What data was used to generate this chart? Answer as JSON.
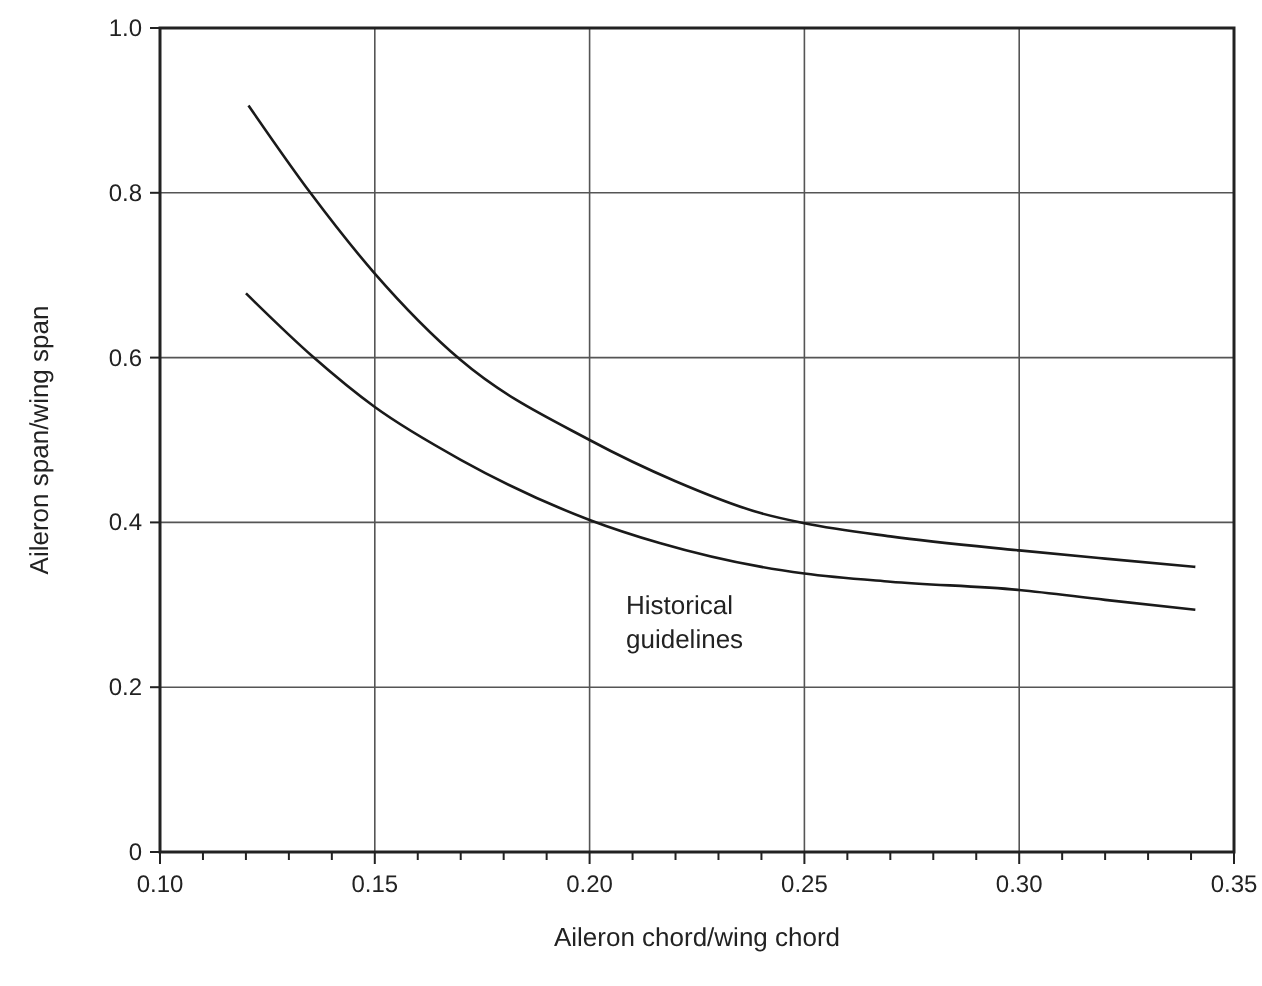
{
  "chart_data": {
    "type": "line",
    "xlabel": "Aileron chord/wing chord",
    "ylabel": "Aileron span/wing span",
    "series": [
      {
        "color": "#1a1a1a",
        "x": [
          0.1206,
          0.135,
          0.15,
          0.17,
          0.2,
          0.22,
          0.24,
          0.25,
          0.27,
          0.3,
          0.32,
          0.341
        ],
        "values": [
          0.906,
          0.8,
          0.702,
          0.597,
          0.5,
          0.45,
          0.411,
          0.399,
          0.383,
          0.366,
          0.356,
          0.346
        ]
      },
      {
        "color": "#1a1a1a",
        "x": [
          0.12,
          0.1356,
          0.15,
          0.17,
          0.2,
          0.2163,
          0.24,
          0.25,
          0.27,
          0.3,
          0.32,
          0.341
        ],
        "values": [
          0.678,
          0.601,
          0.54,
          0.476,
          0.403,
          0.375,
          0.346,
          0.338,
          0.328,
          0.318,
          0.306,
          0.294
        ]
      }
    ],
    "xlim": [
      0.1,
      0.35
    ],
    "ylim": [
      0,
      1
    ],
    "xticks": [
      "0.10",
      {
        "value": 0.11,
        "label": null
      },
      {
        "value": 0.12,
        "label": null
      },
      {
        "value": 0.13,
        "label": null
      },
      {
        "value": 0.14,
        "label": null
      },
      {
        "value": 0.15,
        "label": "0.15"
      },
      {
        "value": 0.16,
        "label": null
      },
      {
        "value": 0.17,
        "label": null
      },
      {
        "value": 0.18,
        "label": null
      },
      {
        "value": 0.19,
        "label": null
      },
      {
        "value": 0.2,
        "label": "0.20"
      },
      {
        "value": 0.21,
        "label": null
      },
      {
        "value": 0.22,
        "label": null
      },
      {
        "value": 0.23,
        "label": null
      },
      {
        "value": 0.24,
        "label": null
      },
      {
        "value": 0.25,
        "label": "0.25"
      },
      {
        "value": 0.26,
        "label": null
      },
      {
        "value": 0.27,
        "label": null
      },
      {
        "value": 0.28,
        "label": null
      },
      {
        "value": 0.29,
        "label": null
      },
      {
        "value": 0.3,
        "label": "0.30"
      },
      {
        "value": 0.31,
        "label": null
      },
      {
        "value": 0.32,
        "label": null
      },
      {
        "value": 0.33,
        "label": null
      },
      {
        "value": 0.34,
        "label": null
      },
      {
        "value": 0.35,
        "label": "0.35"
      }
    ],
    "yticks": [
      0,
      {
        "value": 0.2,
        "label": "0.2"
      },
      {
        "value": 0.4,
        "label": "0.4"
      },
      {
        "value": 0.6,
        "label": "0.6"
      },
      {
        "value": 0.8,
        "label": "0.8"
      },
      {
        "value": 1,
        "label": "1.0"
      }
    ],
    "grid": true,
    "marker": "none",
    "line_style": "solid",
    "annotations": [
      "Historical\nguidelines"
    ]
  }
}
